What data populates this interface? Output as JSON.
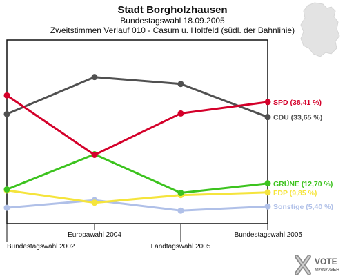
{
  "chart_data": {
    "type": "line",
    "title": "Stadt Borgholzhausen",
    "subtitle": "Bundestagswahl 18.09.2005",
    "subtitle2": "Zweitstimmen Verlauf 010 - Casum u. Holtfeld (südl. der Bahnlinie)",
    "categories": [
      "Bundestagswahl 2002",
      "Europawahl 2004",
      "Landtagswahl 2005",
      "Bundestagswahl 2005"
    ],
    "ylim": [
      0,
      58
    ],
    "grid": false,
    "series": [
      {
        "key": "sonstige",
        "label": "Sonstige (5,40 %)",
        "color": "#b0c0e8",
        "values": [
          5.0,
          7.4,
          4.1,
          5.4
        ]
      },
      {
        "key": "fdp",
        "label": "FDP (9,85 %)",
        "color": "#f5e43c",
        "values": [
          10.5,
          6.6,
          9.0,
          9.85
        ]
      },
      {
        "key": "gruene",
        "label": "GRÜNE (12,70 %)",
        "color": "#3cc31e",
        "values": [
          10.8,
          21.9,
          9.7,
          12.7
        ]
      },
      {
        "key": "cdu",
        "label": "CDU (33,65 %)",
        "color": "#505050",
        "values": [
          34.6,
          46.3,
          44.1,
          33.65
        ]
      },
      {
        "key": "spd",
        "label": "SPD (38,41 %)",
        "color": "#d4002a",
        "values": [
          40.5,
          21.7,
          34.8,
          38.41
        ]
      }
    ]
  },
  "logo": {
    "line1": "VOTE",
    "line2": "MANAGER"
  }
}
